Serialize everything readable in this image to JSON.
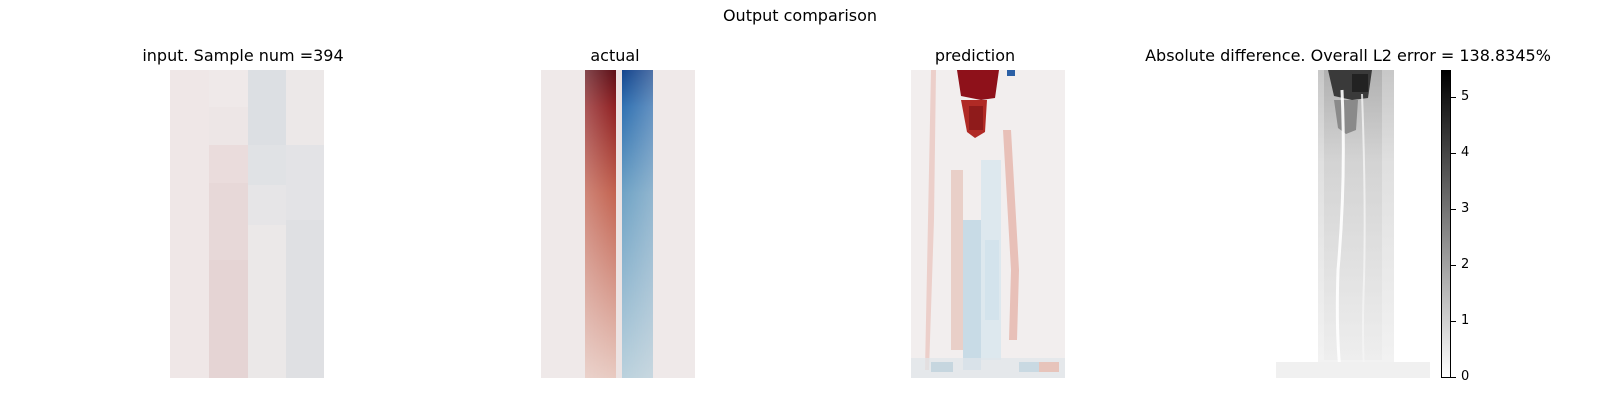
{
  "chart_data": {
    "title": "Output comparison",
    "panels": [
      {
        "type": "heatmap",
        "title": "input. Sample num =394",
        "colormap": "diverging-red-blue"
      },
      {
        "type": "heatmap",
        "title": "actual",
        "colormap": "diverging-red-blue"
      },
      {
        "type": "heatmap",
        "title": "prediction",
        "colormap": "diverging-red-blue"
      },
      {
        "type": "heatmap",
        "title": "Absolute difference. Overall L2 error = 138.8345%",
        "colormap": "gray-reversed",
        "colorbar": {
          "range": [
            0,
            5.5
          ],
          "ticks": [
            "0",
            "1",
            "2",
            "3",
            "4",
            "5"
          ]
        }
      }
    ]
  }
}
